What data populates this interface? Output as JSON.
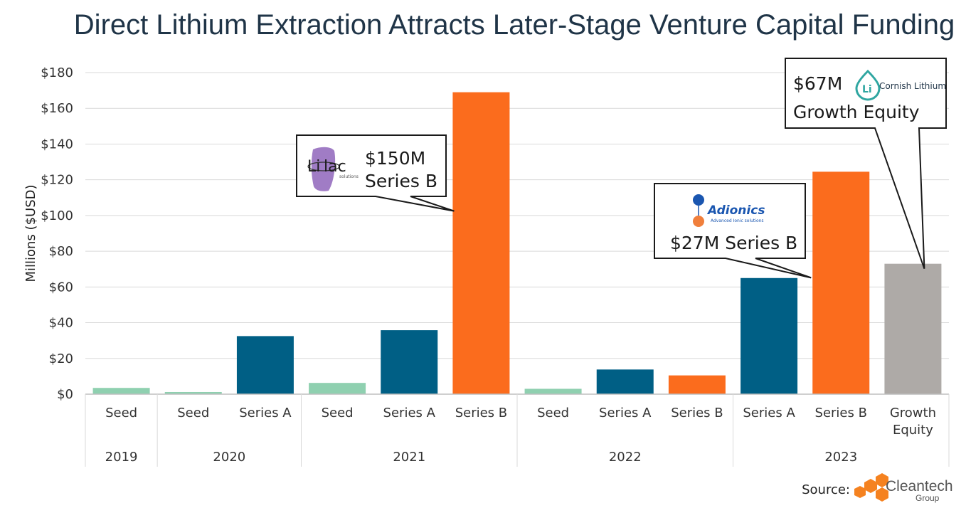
{
  "chart_data": {
    "type": "bar",
    "title": "Direct Lithium Extraction Attracts Later-Stage Venture Capital Funding",
    "ylabel": "Millions ($USD)",
    "xlabel": "",
    "ylim": [
      0,
      180
    ],
    "ytick_values": [
      0,
      20,
      40,
      60,
      80,
      100,
      120,
      140,
      160,
      180
    ],
    "ytick_labels": [
      "$0",
      "$20",
      "$40",
      "$60",
      "$80",
      "$100",
      "$120",
      "$140",
      "$160",
      "$180"
    ],
    "grid": true,
    "bars": [
      {
        "year": "2019",
        "category": "Seed",
        "label_lines": [
          "Seed"
        ],
        "value": 3.5,
        "type": "Seed"
      },
      {
        "year": "2020",
        "category": "Seed",
        "label_lines": [
          "Seed"
        ],
        "value": 1.2,
        "type": "Seed"
      },
      {
        "year": "2020",
        "category": "Series A",
        "label_lines": [
          "Series A"
        ],
        "value": 32.5,
        "type": "Series A"
      },
      {
        "year": "2021",
        "category": "Seed",
        "label_lines": [
          "Seed"
        ],
        "value": 6.3,
        "type": "Seed"
      },
      {
        "year": "2021",
        "category": "Series A",
        "label_lines": [
          "Series A"
        ],
        "value": 35.8,
        "type": "Series A"
      },
      {
        "year": "2021",
        "category": "Series B",
        "label_lines": [
          "Series B"
        ],
        "value": 169,
        "type": "Series B"
      },
      {
        "year": "2022",
        "category": "Seed",
        "label_lines": [
          "Seed"
        ],
        "value": 3.0,
        "type": "Seed"
      },
      {
        "year": "2022",
        "category": "Series A",
        "label_lines": [
          "Series A"
        ],
        "value": 13.8,
        "type": "Series A"
      },
      {
        "year": "2022",
        "category": "Series B",
        "label_lines": [
          "Series B"
        ],
        "value": 10.5,
        "type": "Series B"
      },
      {
        "year": "2023",
        "category": "Series A",
        "label_lines": [
          "Series A"
        ],
        "value": 65,
        "type": "Series A"
      },
      {
        "year": "2023",
        "category": "Series B",
        "label_lines": [
          "Series B"
        ],
        "value": 124.5,
        "type": "Series B"
      },
      {
        "year": "2023",
        "category": "Growth Equity",
        "label_lines": [
          "Growth",
          "Equity"
        ],
        "value": 73,
        "type": "Growth Equity"
      }
    ],
    "year_groups": [
      "2019",
      "2020",
      "2021",
      "2022",
      "2023"
    ],
    "colors": {
      "Seed": "#8fd0b0",
      "Series A": "#005f85",
      "Series B": "#fb6c1d",
      "Growth Equity": "#aeaaa7"
    },
    "annotations": [
      {
        "id": "lilac",
        "logo": "Lilac Solutions",
        "logo_main": "Li",
        "logo_rest": "lac",
        "logo_sub": "solutions",
        "lines": [
          "$150M",
          "Series B"
        ],
        "target_bar": 5
      },
      {
        "id": "adionics",
        "logo": "Adionics",
        "logo_main": "Adionics",
        "logo_sub": "Advanced Ionic solutions",
        "lines": [
          "$27M Series B"
        ],
        "target_bar": 10
      },
      {
        "id": "cornish",
        "logo": "Cornish Lithium",
        "logo_main": "Li",
        "logo_name": "Cornish Lithium",
        "lines": [
          "$67M",
          "Growth Equity"
        ],
        "target_bar": 11
      }
    ]
  },
  "source": {
    "label": "Source:",
    "brand": "Cleantech",
    "brand_sub": "Group",
    "brand_color": "#f58220"
  }
}
